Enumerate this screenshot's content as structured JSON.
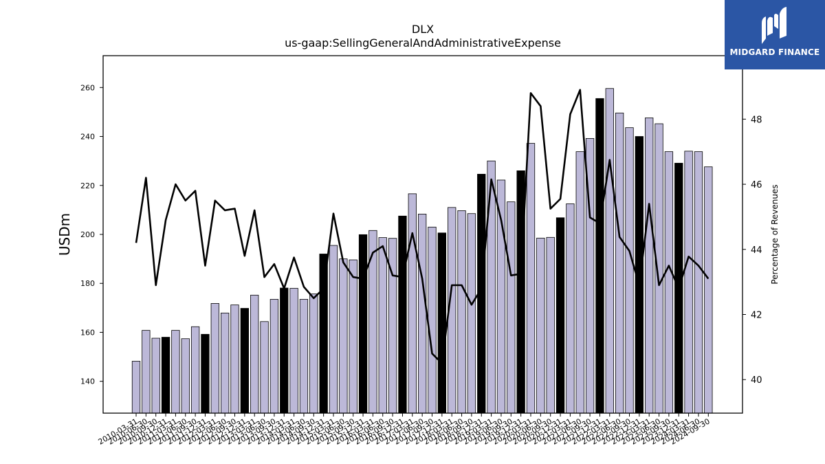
{
  "chart_data": {
    "type": "bar",
    "title": "DLX",
    "subtitle": "us-gaap:SellingGeneralAndAdministrativeExpense",
    "ylabel": "USDm",
    "y2label": "Percentage of Revenues",
    "ylim": [
      127,
      273
    ],
    "y2lim": [
      38.97,
      49.95
    ],
    "yticks": [
      140,
      160,
      180,
      200,
      220,
      240,
      260
    ],
    "y2ticks": [
      40,
      42,
      44,
      46,
      48
    ],
    "grid": false,
    "categories": [
      "2010-03-31",
      "2010-06-30",
      "2010-09-30",
      "2010-12-31",
      "2011-03-31",
      "2011-06-30",
      "2011-09-30",
      "2011-12-31",
      "2012-03-31",
      "2012-06-30",
      "2012-09-30",
      "2012-12-31",
      "2013-03-31",
      "2013-06-30",
      "2013-09-30",
      "2013-12-31",
      "2014-03-31",
      "2014-06-30",
      "2014-09-30",
      "2014-12-31",
      "2015-03-31",
      "2015-06-30",
      "2015-09-30",
      "2015-12-31",
      "2016-03-31",
      "2016-06-30",
      "2016-09-30",
      "2016-12-31",
      "2017-03-31",
      "2017-06-30",
      "2017-09-30",
      "2017-12-31",
      "2018-03-31",
      "2018-06-30",
      "2018-09-30",
      "2018-12-31",
      "2019-03-31",
      "2019-06-30",
      "2019-09-30",
      "2019-12-31",
      "2020-03-31",
      "2020-06-30",
      "2020-09-30",
      "2020-12-31",
      "2021-03-31",
      "2021-06-30",
      "2021-09-30",
      "2021-12-31",
      "2022-03-31",
      "2022-06-30",
      "2022-09-30",
      "2022-12-31",
      "2023-03-31",
      "2023-06-30",
      "2023-09-30",
      "2023-12-31",
      "2024-03-31",
      "2024-06-30",
      "2024-09-30"
    ],
    "series": [
      {
        "type": "bar",
        "axis": "left",
        "color": "#bcb8d8",
        "highlight_color": "#000000",
        "values": [
          148.2,
          160.8,
          157.6,
          158.0,
          160.8,
          157.4,
          162.3,
          159.2,
          171.8,
          167.9,
          171.2,
          169.8,
          175.2,
          164.4,
          173.5,
          178.1,
          178.0,
          173.5,
          175.7,
          192.0,
          195.5,
          190.0,
          189.6,
          199.9,
          201.6,
          198.7,
          198.4,
          207.5,
          216.6,
          208.3,
          203.0,
          200.6,
          211.0,
          209.7,
          208.5,
          224.6,
          230.0,
          222.2,
          213.3,
          226.0,
          237.2,
          198.5,
          198.8,
          206.8,
          212.5,
          233.8,
          239.2,
          255.5,
          259.6,
          249.6,
          243.6,
          240.0,
          247.6,
          245.2,
          233.8,
          229.1,
          234.0,
          233.8,
          227.6
        ],
        "highlight": [
          false,
          false,
          false,
          true,
          false,
          false,
          false,
          true,
          false,
          false,
          false,
          true,
          false,
          false,
          false,
          true,
          false,
          false,
          false,
          true,
          false,
          false,
          false,
          true,
          false,
          false,
          false,
          true,
          false,
          false,
          false,
          true,
          false,
          false,
          false,
          true,
          false,
          false,
          false,
          true,
          false,
          false,
          false,
          true,
          false,
          false,
          false,
          true,
          false,
          false,
          false,
          true,
          false,
          false,
          false,
          true,
          false,
          false,
          false
        ]
      },
      {
        "type": "line",
        "axis": "right",
        "color": "#000000",
        "values": [
          44.2,
          46.2,
          42.9,
          44.9,
          46.0,
          45.5,
          45.8,
          43.5,
          45.5,
          45.2,
          45.25,
          43.8,
          45.2,
          43.15,
          43.55,
          42.8,
          43.75,
          42.85,
          42.5,
          42.8,
          45.1,
          43.6,
          43.15,
          43.1,
          43.9,
          44.1,
          43.2,
          43.15,
          44.5,
          43.1,
          40.8,
          40.5,
          42.9,
          42.9,
          42.3,
          42.8,
          46.15,
          44.9,
          43.2,
          43.25,
          48.8,
          48.4,
          45.25,
          45.55,
          48.15,
          48.9,
          44.98,
          44.8,
          46.75,
          44.38,
          43.95,
          42.9,
          45.4,
          42.9,
          43.5,
          42.8,
          43.78,
          43.5,
          43.1
        ]
      }
    ]
  },
  "logo": {
    "text": "MIDGARD FINANCE",
    "icon": "midgard-logo-icon",
    "background": "#2b56a5"
  }
}
